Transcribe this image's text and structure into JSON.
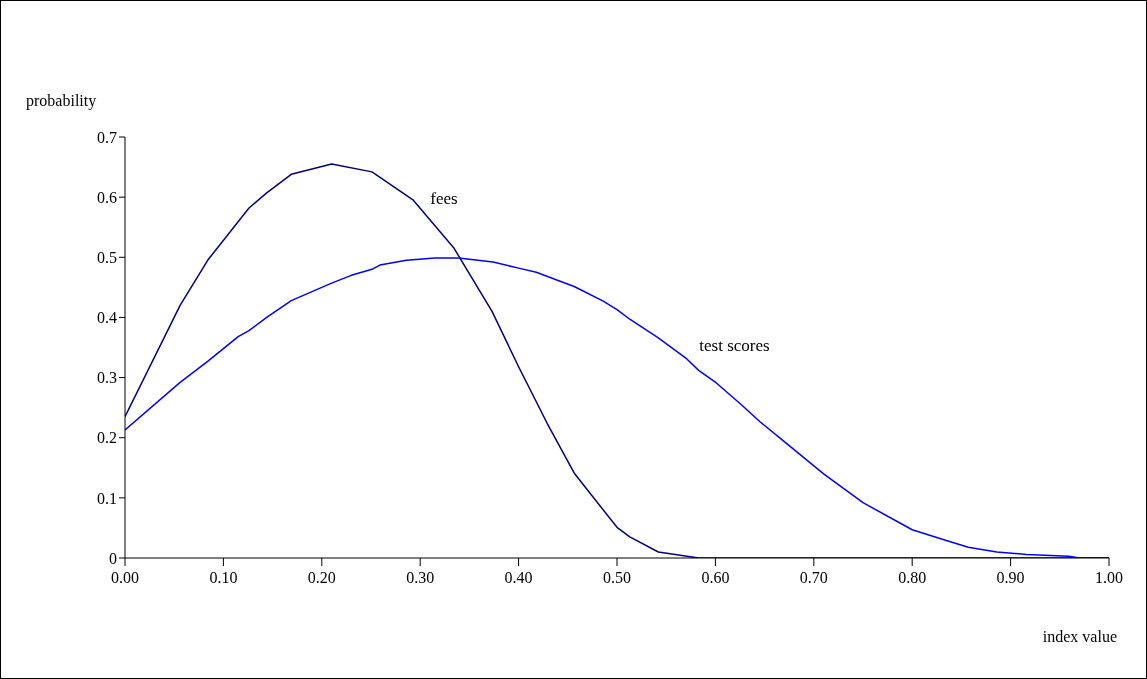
{
  "chart_data": {
    "type": "line",
    "xlabel": "index value",
    "ylabel": "probability",
    "xlim": [
      0,
      1
    ],
    "ylim": [
      0,
      0.7
    ],
    "xticks": [
      {
        "value": 0,
        "label": "0.00"
      },
      {
        "value": 0.1,
        "label": "0.10"
      },
      {
        "value": 0.2,
        "label": "0.20"
      },
      {
        "value": 0.3,
        "label": "0.30"
      },
      {
        "value": 0.4,
        "label": "0.40"
      },
      {
        "value": 0.5,
        "label": "0.50"
      },
      {
        "value": 0.6,
        "label": "0.60"
      },
      {
        "value": 0.7,
        "label": "0.70"
      },
      {
        "value": 0.8,
        "label": "0.80"
      },
      {
        "value": 0.9,
        "label": "0.90"
      },
      {
        "value": 1,
        "label": "1.00"
      }
    ],
    "yticks": [
      0,
      0.1,
      0.2,
      0.3,
      0.4,
      0.5,
      0.6,
      0.7
    ],
    "grid": false,
    "marker": "none",
    "line_style": "solid",
    "series": [
      {
        "name": "fees",
        "color": "#000080",
        "x": [
          0,
          0.056,
          0.084,
          0.126,
          0.144,
          0.169,
          0.21,
          0.251,
          0.293,
          0.334,
          0.373,
          0.4,
          0.429,
          0.457,
          0.5,
          0.513,
          0.542,
          0.583,
          1
        ],
        "values": [
          0.235,
          0.42,
          0.495,
          0.582,
          0.607,
          0.638,
          0.655,
          0.642,
          0.595,
          0.516,
          0.41,
          0.318,
          0.224,
          0.14,
          0.051,
          0.035,
          0.01,
          0,
          0
        ]
      },
      {
        "name": "test scores",
        "color": "#0000ff",
        "x": [
          0,
          0.056,
          0.084,
          0.115,
          0.126,
          0.144,
          0.169,
          0.21,
          0.23,
          0.251,
          0.259,
          0.286,
          0.315,
          0.339,
          0.374,
          0.4,
          0.418,
          0.457,
          0.486,
          0.5,
          0.513,
          0.542,
          0.571,
          0.583,
          0.601,
          0.627,
          0.645,
          0.666,
          0.71,
          0.75,
          0.8,
          0.833,
          0.857,
          0.886,
          0.916,
          0.959,
          0.97,
          1
        ],
        "values": [
          0.213,
          0.292,
          0.327,
          0.368,
          0.378,
          0.4,
          0.428,
          0.457,
          0.47,
          0.48,
          0.487,
          0.495,
          0.499,
          0.499,
          0.492,
          0.482,
          0.475,
          0.451,
          0.427,
          0.413,
          0.397,
          0.366,
          0.331,
          0.312,
          0.291,
          0.254,
          0.227,
          0.199,
          0.14,
          0.092,
          0.047,
          0.03,
          0.018,
          0.01,
          0.006,
          0.003,
          0,
          0
        ]
      }
    ]
  }
}
